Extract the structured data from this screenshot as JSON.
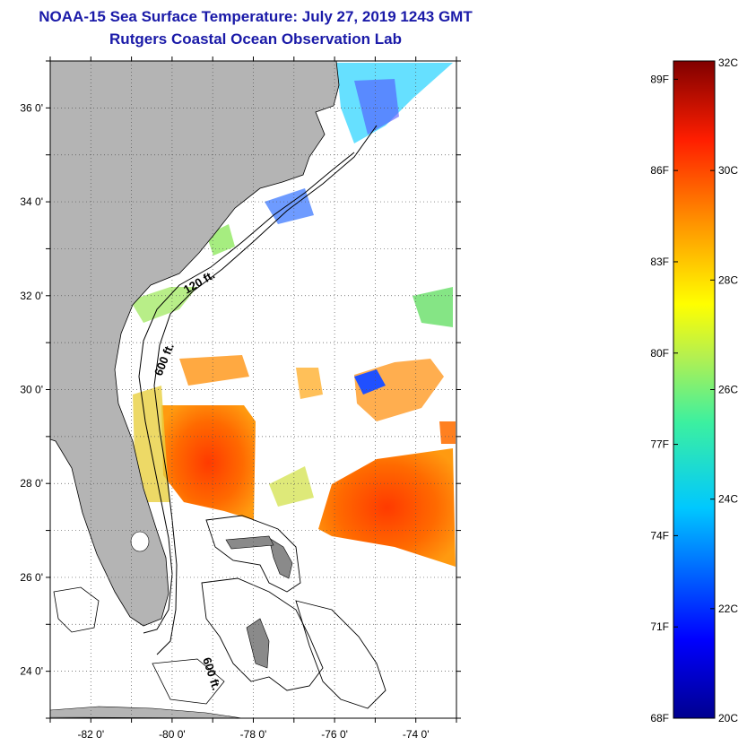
{
  "header": {
    "title": "NOAA-15 Sea Surface Temperature:  July 27, 2019 1243 GMT",
    "subtitle": "Rutgers Coastal Ocean Observation Lab"
  },
  "map": {
    "lon_range": [
      -83,
      -73
    ],
    "lat_range": [
      23,
      37
    ],
    "lon_ticks": [
      {
        "value": -82,
        "label": "-82 0'"
      },
      {
        "value": -80,
        "label": "-80 0'"
      },
      {
        "value": -78,
        "label": "-78 0'"
      },
      {
        "value": -76,
        "label": "-76 0'"
      },
      {
        "value": -74,
        "label": "-74 0'"
      }
    ],
    "lat_ticks": [
      {
        "value": 36,
        "label": "36 0'"
      },
      {
        "value": 34,
        "label": "34 0'"
      },
      {
        "value": 32,
        "label": "32 0'"
      },
      {
        "value": 30,
        "label": "30 0'"
      },
      {
        "value": 28,
        "label": "28 0'"
      },
      {
        "value": 26,
        "label": "26 0'"
      },
      {
        "value": 24,
        "label": "24 0'"
      }
    ],
    "contour_labels": {
      "c120": "120 ft.",
      "c600a": "600 ft.",
      "c600b": "600 ft."
    },
    "colors": {
      "land": "#b4b4b4",
      "ocean": "#ffffff",
      "grid": "#555555"
    }
  },
  "colorbar": {
    "range_c": [
      20,
      32
    ],
    "celsius_labels": [
      "32C",
      "30C",
      "28C",
      "26C",
      "24C",
      "22C",
      "20C"
    ],
    "fahrenheit_labels": [
      "89F",
      "86F",
      "83F",
      "80F",
      "77F",
      "74F",
      "71F",
      "68F"
    ]
  }
}
